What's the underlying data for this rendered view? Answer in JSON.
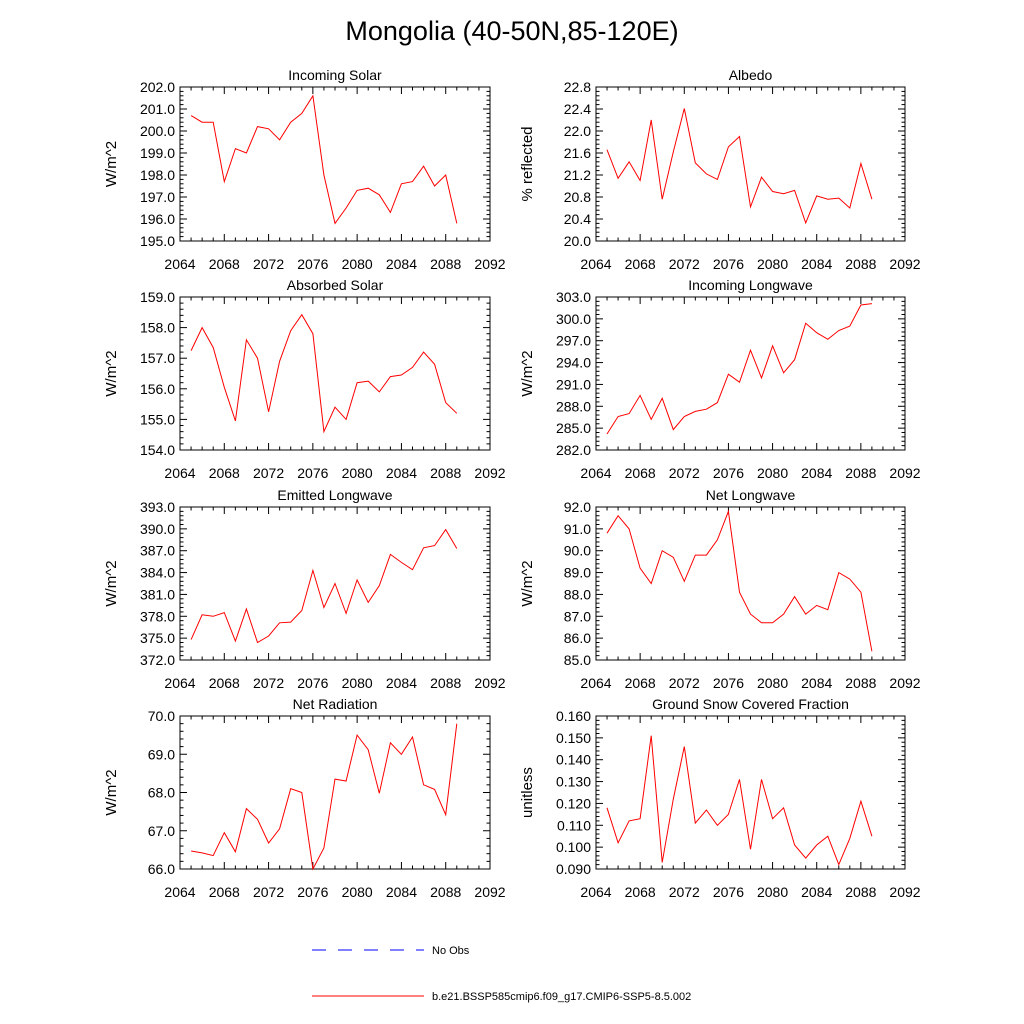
{
  "title": "Mongolia (40-50N,85-120E)",
  "colors": {
    "series": "#ff0000",
    "obs": "#0000ff",
    "axis": "#000000"
  },
  "legend": {
    "items": [
      {
        "label": "No Obs",
        "style": "dashed",
        "color": "#0000ff"
      },
      {
        "label": "b.e21.BSSP585cmip6.f09_g17.CMIP6-SSP5-8.5.002",
        "style": "solid",
        "color": "#ff0000"
      }
    ]
  },
  "chart_data": [
    {
      "type": "line",
      "title": "Incoming Solar",
      "ylabel": "W/m^2",
      "xlabel": "",
      "xlim": [
        2064,
        2092
      ],
      "ylim": [
        195.0,
        202.0
      ],
      "xticks": [
        2064,
        2068,
        2072,
        2076,
        2080,
        2084,
        2088,
        2092
      ],
      "yticks": [
        "195.0",
        "196.0",
        "197.0",
        "198.0",
        "199.0",
        "200.0",
        "201.0",
        "202.0"
      ],
      "x": [
        2065,
        2066,
        2067,
        2068,
        2069,
        2070,
        2071,
        2072,
        2073,
        2074,
        2075,
        2076,
        2077,
        2078,
        2079,
        2080,
        2081,
        2082,
        2083,
        2084,
        2085,
        2086,
        2087,
        2088,
        2089
      ],
      "series": [
        {
          "values": [
            200.7,
            200.4,
            200.4,
            197.7,
            199.2,
            199.0,
            200.2,
            200.1,
            199.6,
            200.4,
            200.8,
            201.6,
            198.0,
            195.8,
            196.5,
            197.3,
            197.4,
            197.1,
            196.3,
            197.6,
            197.7,
            198.4,
            197.5,
            198.0,
            195.8
          ]
        }
      ]
    },
    {
      "type": "line",
      "title": "Albedo",
      "ylabel": "% reflected",
      "xlabel": "",
      "xlim": [
        2064,
        2092
      ],
      "ylim": [
        20.0,
        22.8
      ],
      "xticks": [
        2064,
        2068,
        2072,
        2076,
        2080,
        2084,
        2088,
        2092
      ],
      "yticks": [
        "20.0",
        "20.4",
        "20.8",
        "21.2",
        "21.6",
        "22.0",
        "22.4",
        "22.8"
      ],
      "x": [
        2065,
        2066,
        2067,
        2068,
        2069,
        2070,
        2071,
        2072,
        2073,
        2074,
        2075,
        2076,
        2077,
        2078,
        2079,
        2080,
        2081,
        2082,
        2083,
        2084,
        2085,
        2086,
        2087,
        2088,
        2089
      ],
      "series": [
        {
          "values": [
            21.66,
            21.14,
            21.44,
            21.1,
            22.2,
            20.76,
            21.62,
            22.41,
            21.42,
            21.22,
            21.12,
            21.71,
            21.9,
            20.62,
            21.16,
            20.9,
            20.86,
            20.92,
            20.33,
            20.82,
            20.76,
            20.78,
            20.6,
            21.41,
            20.76
          ]
        }
      ]
    },
    {
      "type": "line",
      "title": "Absorbed Solar",
      "ylabel": "W/m^2",
      "xlabel": "",
      "xlim": [
        2064,
        2092
      ],
      "ylim": [
        154.0,
        159.0
      ],
      "xticks": [
        2064,
        2068,
        2072,
        2076,
        2080,
        2084,
        2088,
        2092
      ],
      "yticks": [
        "154.0",
        "155.0",
        "156.0",
        "157.0",
        "158.0",
        "159.0"
      ],
      "x": [
        2065,
        2066,
        2067,
        2068,
        2069,
        2070,
        2071,
        2072,
        2073,
        2074,
        2075,
        2076,
        2077,
        2078,
        2079,
        2080,
        2081,
        2082,
        2083,
        2084,
        2085,
        2086,
        2087,
        2088,
        2089
      ],
      "series": [
        {
          "values": [
            157.25,
            158.0,
            157.35,
            156.05,
            154.95,
            157.6,
            157.0,
            155.25,
            156.9,
            157.9,
            158.42,
            157.8,
            154.6,
            155.4,
            155.0,
            156.2,
            156.25,
            155.9,
            156.4,
            156.45,
            156.7,
            157.2,
            156.8,
            155.55,
            155.2
          ]
        }
      ]
    },
    {
      "type": "line",
      "title": "Incoming Longwave",
      "ylabel": "W/m^2",
      "xlabel": "",
      "xlim": [
        2064,
        2092
      ],
      "ylim": [
        282.0,
        303.0
      ],
      "xticks": [
        2064,
        2068,
        2072,
        2076,
        2080,
        2084,
        2088,
        2092
      ],
      "yticks": [
        "282.0",
        "285.0",
        "288.0",
        "291.0",
        "294.0",
        "297.0",
        "300.0",
        "303.0"
      ],
      "x": [
        2065,
        2066,
        2067,
        2068,
        2069,
        2070,
        2071,
        2072,
        2073,
        2074,
        2075,
        2076,
        2077,
        2078,
        2079,
        2080,
        2081,
        2082,
        2083,
        2084,
        2085,
        2086,
        2087,
        2088,
        2089
      ],
      "series": [
        {
          "values": [
            284.2,
            286.6,
            287.0,
            289.5,
            286.2,
            289.1,
            284.8,
            286.6,
            287.3,
            287.6,
            288.5,
            292.4,
            291.3,
            295.7,
            291.9,
            296.3,
            292.6,
            294.4,
            299.4,
            298.1,
            297.2,
            298.4,
            299.0,
            301.9,
            302.1
          ]
        }
      ]
    },
    {
      "type": "line",
      "title": "Emitted Longwave",
      "ylabel": "W/m^2",
      "xlabel": "",
      "xlim": [
        2064,
        2092
      ],
      "ylim": [
        372.0,
        393.0
      ],
      "xticks": [
        2064,
        2068,
        2072,
        2076,
        2080,
        2084,
        2088,
        2092
      ],
      "yticks": [
        "372.0",
        "375.0",
        "378.0",
        "381.0",
        "384.0",
        "387.0",
        "390.0",
        "393.0"
      ],
      "x": [
        2065,
        2066,
        2067,
        2068,
        2069,
        2070,
        2071,
        2072,
        2073,
        2074,
        2075,
        2076,
        2077,
        2078,
        2079,
        2080,
        2081,
        2082,
        2083,
        2084,
        2085,
        2086,
        2087,
        2088,
        2089
      ],
      "series": [
        {
          "values": [
            374.8,
            378.2,
            378.0,
            378.5,
            374.6,
            379.0,
            374.4,
            375.3,
            377.1,
            377.2,
            378.8,
            384.3,
            379.2,
            382.5,
            378.4,
            383.0,
            379.9,
            382.2,
            386.5,
            385.4,
            384.4,
            387.4,
            387.7,
            389.9,
            387.3
          ]
        }
      ]
    },
    {
      "type": "line",
      "title": "Net Longwave",
      "ylabel": "W/m^2",
      "xlabel": "",
      "xlim": [
        2064,
        2092
      ],
      "ylim": [
        85.0,
        92.0
      ],
      "xticks": [
        2064,
        2068,
        2072,
        2076,
        2080,
        2084,
        2088,
        2092
      ],
      "yticks": [
        "85.0",
        "86.0",
        "87.0",
        "88.0",
        "89.0",
        "90.0",
        "91.0",
        "92.0"
      ],
      "x": [
        2065,
        2066,
        2067,
        2068,
        2069,
        2070,
        2071,
        2072,
        2073,
        2074,
        2075,
        2076,
        2077,
        2078,
        2079,
        2080,
        2081,
        2082,
        2083,
        2084,
        2085,
        2086,
        2087,
        2088,
        2089
      ],
      "series": [
        {
          "values": [
            90.8,
            91.6,
            91.0,
            89.2,
            88.5,
            90.0,
            89.7,
            88.6,
            89.8,
            89.8,
            90.5,
            91.8,
            88.1,
            87.1,
            86.7,
            86.7,
            87.1,
            87.9,
            87.1,
            87.5,
            87.3,
            89.0,
            88.7,
            88.1,
            85.4
          ]
        }
      ]
    },
    {
      "type": "line",
      "title": "Net Radiation",
      "ylabel": "W/m^2",
      "xlabel": "",
      "xlim": [
        2064,
        2092
      ],
      "ylim": [
        66.0,
        70.0
      ],
      "xticks": [
        2064,
        2068,
        2072,
        2076,
        2080,
        2084,
        2088,
        2092
      ],
      "yticks": [
        "66.0",
        "67.0",
        "68.0",
        "69.0",
        "70.0"
      ],
      "x": [
        2065,
        2066,
        2067,
        2068,
        2069,
        2070,
        2071,
        2072,
        2073,
        2074,
        2075,
        2076,
        2077,
        2078,
        2079,
        2080,
        2081,
        2082,
        2083,
        2084,
        2085,
        2086,
        2087,
        2088,
        2089
      ],
      "series": [
        {
          "values": [
            66.47,
            66.42,
            66.35,
            66.95,
            66.45,
            67.58,
            67.3,
            66.68,
            67.05,
            68.1,
            68.0,
            66.0,
            66.55,
            68.35,
            68.3,
            69.5,
            69.12,
            67.98,
            69.3,
            69.0,
            69.45,
            68.2,
            68.08,
            67.42,
            69.8
          ]
        }
      ]
    },
    {
      "type": "line",
      "title": "Ground Snow Covered Fraction",
      "ylabel": "unitless",
      "xlabel": "",
      "xlim": [
        2064,
        2092
      ],
      "ylim": [
        0.09,
        0.16
      ],
      "xticks": [
        2064,
        2068,
        2072,
        2076,
        2080,
        2084,
        2088,
        2092
      ],
      "yticks": [
        "0.090",
        "0.100",
        "0.110",
        "0.120",
        "0.130",
        "0.140",
        "0.150",
        "0.160"
      ],
      "x": [
        2065,
        2066,
        2067,
        2068,
        2069,
        2070,
        2071,
        2072,
        2073,
        2074,
        2075,
        2076,
        2077,
        2078,
        2079,
        2080,
        2081,
        2082,
        2083,
        2084,
        2085,
        2086,
        2087,
        2088,
        2089
      ],
      "series": [
        {
          "values": [
            0.118,
            0.102,
            0.112,
            0.113,
            0.151,
            0.093,
            0.122,
            0.146,
            0.111,
            0.117,
            0.11,
            0.115,
            0.131,
            0.099,
            0.131,
            0.113,
            0.118,
            0.101,
            0.095,
            0.101,
            0.105,
            0.092,
            0.104,
            0.121,
            0.105
          ]
        }
      ]
    }
  ]
}
